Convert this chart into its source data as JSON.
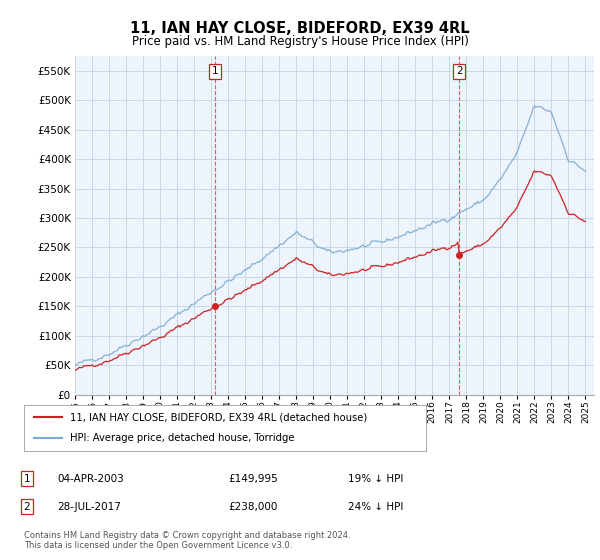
{
  "title": "11, IAN HAY CLOSE, BIDEFORD, EX39 4RL",
  "subtitle": "Price paid vs. HM Land Registry's House Price Index (HPI)",
  "hpi_color": "#7aaad4",
  "price_color": "#cc2222",
  "vline_color": "#cc2222",
  "ylim": [
    0,
    575000
  ],
  "yticks": [
    0,
    50000,
    100000,
    150000,
    200000,
    250000,
    300000,
    350000,
    400000,
    450000,
    500000,
    550000
  ],
  "ytick_labels": [
    "£0",
    "£50K",
    "£100K",
    "£150K",
    "£200K",
    "£250K",
    "£300K",
    "£350K",
    "£400K",
    "£450K",
    "£500K",
    "£550K"
  ],
  "legend_label_red": "11, IAN HAY CLOSE, BIDEFORD, EX39 4RL (detached house)",
  "legend_label_blue": "HPI: Average price, detached house, Torridge",
  "sale1_year": 2003.25,
  "sale1_value": 149995,
  "sale1_date_str": "04-APR-2003",
  "sale1_pct": "19% ↓ HPI",
  "sale2_year": 2017.58,
  "sale2_value": 238000,
  "sale2_date_str": "28-JUL-2017",
  "sale2_pct": "24% ↓ HPI",
  "footer": "Contains HM Land Registry data © Crown copyright and database right 2024.\nThis data is licensed under the Open Government Licence v3.0.",
  "bg_color": "#eef4fb",
  "grid_color": "#c8d8e8",
  "xlim_left": 1995.0,
  "xlim_right": 2025.5
}
